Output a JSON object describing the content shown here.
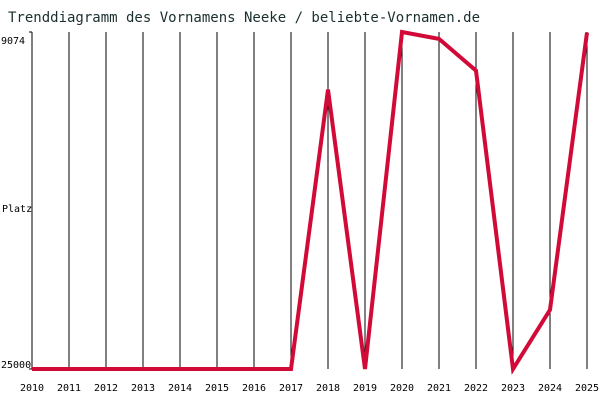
{
  "chart_data": {
    "type": "line",
    "title": "Trenddiagramm des Vornamens Neeke / beliebte-Vornamen.de",
    "y_label": "Platz",
    "x": [
      2010,
      2011,
      2012,
      2013,
      2014,
      2015,
      2016,
      2017,
      2018,
      2019,
      2020,
      2021,
      2022,
      2023,
      2024,
      2025
    ],
    "series": [
      {
        "name": "Neeke",
        "color": "#d20a37",
        "values": [
          25000,
          25000,
          25000,
          25000,
          25000,
          25000,
          25000,
          25000,
          11800,
          25000,
          9074,
          9400,
          10900,
          25000,
          22200,
          9100
        ]
      }
    ],
    "xlim": [
      2010,
      2025
    ],
    "xticks": [
      2010,
      2011,
      2012,
      2013,
      2014,
      2015,
      2016,
      2017,
      2018,
      2019,
      2020,
      2021,
      2022,
      2023,
      2024,
      2025
    ],
    "ylim": [
      25000,
      9074
    ],
    "yticks": [
      9074,
      25000
    ],
    "y_inverted": true,
    "grid": true
  }
}
